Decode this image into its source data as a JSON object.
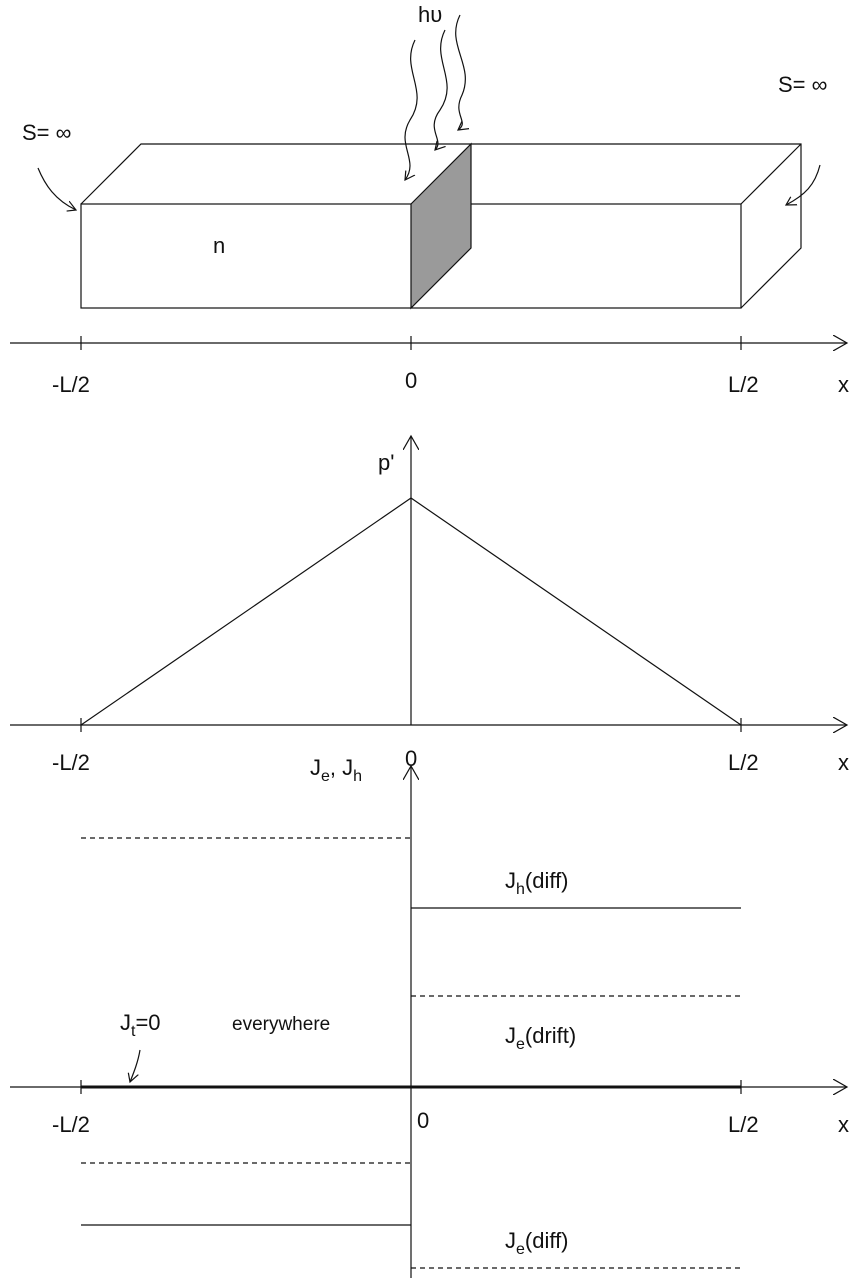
{
  "top_panel": {
    "photon": "hυ",
    "surface_left": "S= ∞",
    "surface_right": "S= ∞",
    "region": "n",
    "axis": {
      "left": "-L/2",
      "origin": "0",
      "right": "L/2",
      "var": "x"
    }
  },
  "middle_panel": {
    "y_label": "p'",
    "axis": {
      "left": "-L/2",
      "origin": "0",
      "right": "L/2",
      "var": "x"
    }
  },
  "bottom_panel": {
    "y_label": {
      "j1": "J",
      "sub1": "e",
      "sep": ", J",
      "sub2": "h"
    },
    "axis": {
      "left": "-L/2",
      "origin": "0",
      "right": "L/2",
      "var": "x"
    },
    "hole_diff": {
      "base": "J",
      "sub": "h",
      "rest": "(diff)"
    },
    "electron_drift": {
      "base": "J",
      "sub": "e",
      "rest": "(drift)"
    },
    "total": {
      "base": "J",
      "sub": "t",
      "rest": "=0",
      "note": "everywhere"
    },
    "electron_diff": {
      "base": "J",
      "sub": "e",
      "rest": "(diff)"
    }
  }
}
